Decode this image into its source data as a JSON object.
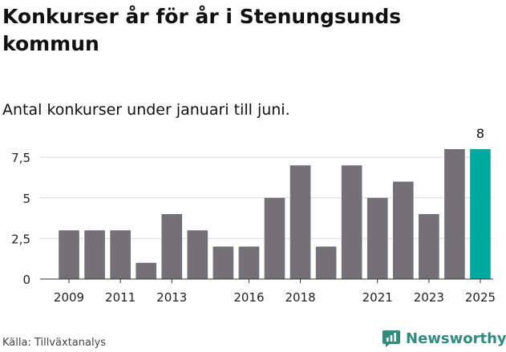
{
  "header": {
    "title": "Konkurser år för år i Stenungsunds kommun",
    "subtitle": "Antal konkurser under januari till juni."
  },
  "footer": {
    "source": "Källa: Tillväxtanalys",
    "brand": "Newsworthy"
  },
  "colors": {
    "bar": "#737176",
    "highlight": "#00a99d",
    "grid": "#d9d9d9",
    "axis": "#333333",
    "brand": "#2e8b7e"
  },
  "chart_data": {
    "type": "bar",
    "categories": [
      "2009",
      "2010",
      "2011",
      "2012",
      "2013",
      "2014",
      "2015",
      "2016",
      "2017",
      "2018",
      "2019",
      "2020",
      "2021",
      "2022",
      "2023",
      "2024",
      "2025"
    ],
    "values": [
      3,
      3,
      3,
      1,
      4,
      3,
      2,
      2,
      5,
      7,
      2,
      7,
      5,
      6,
      4,
      8,
      8
    ],
    "x_tick_labels": [
      "2009",
      "2011",
      "2013",
      "2016",
      "2018",
      "2021",
      "2023",
      "2025"
    ],
    "y_ticks": [
      0,
      2.5,
      5,
      7.5
    ],
    "y_tick_labels": [
      "0",
      "2,5",
      "5",
      "7,5"
    ],
    "ylim": [
      0,
      8
    ],
    "highlight_index": 16,
    "data_labels": [
      {
        "index": 16,
        "text": "8"
      }
    ],
    "grid": true,
    "legend": "none",
    "xlabel": "",
    "ylabel": ""
  }
}
